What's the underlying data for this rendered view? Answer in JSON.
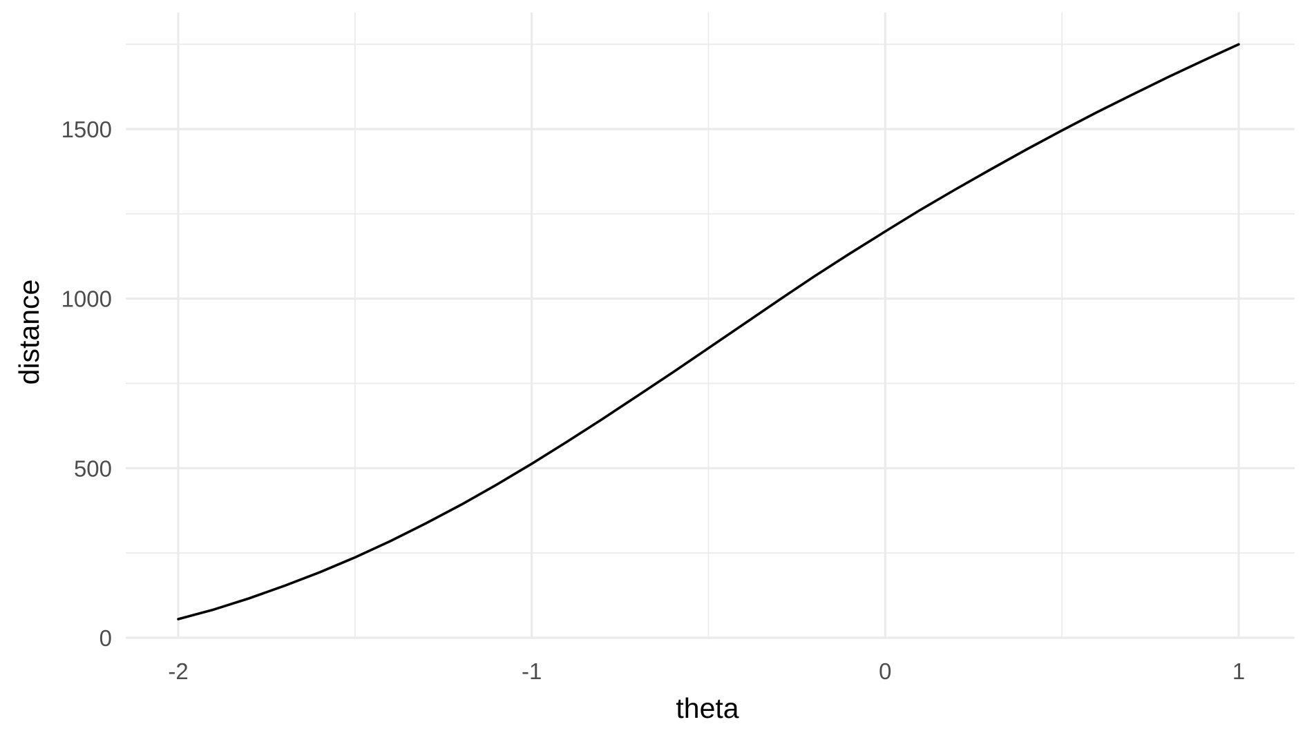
{
  "chart_data": {
    "type": "line",
    "xlabel": "theta",
    "ylabel": "distance",
    "xlim": [
      -2.15,
      1.15
    ],
    "ylim": [
      0,
      1750
    ],
    "x_ticks": [
      -2,
      -1,
      0,
      1
    ],
    "x_tick_labels": [
      "-2",
      "-1",
      "0",
      "1"
    ],
    "x_minor_ticks": [
      -1.5,
      -0.5,
      0.5
    ],
    "y_ticks": [
      0,
      500,
      1000,
      1500
    ],
    "y_tick_labels": [
      "0",
      "500",
      "1000",
      "1500"
    ],
    "y_minor_ticks": [
      250,
      750,
      1250,
      1750
    ],
    "grid": true,
    "series": [
      {
        "color": "#000000",
        "x": [
          -2.0,
          -1.9,
          -1.8,
          -1.7,
          -1.6,
          -1.5,
          -1.4,
          -1.3,
          -1.2,
          -1.1,
          -1.0,
          -0.9,
          -0.8,
          -0.7,
          -0.6,
          -0.5,
          -0.4,
          -0.3,
          -0.2,
          -0.1,
          0.0,
          0.1,
          0.2,
          0.3,
          0.4,
          0.5,
          0.6,
          0.7,
          0.8,
          0.9,
          1.0
        ],
        "y": [
          55,
          83,
          116,
          153,
          193,
          237,
          285,
          337,
          392,
          451,
          513,
          578,
          645,
          714,
          783,
          854,
          925,
          996,
          1066,
          1133,
          1198,
          1262,
          1323,
          1382,
          1440,
          1496,
          1550,
          1602,
          1653,
          1702,
          1750
        ]
      }
    ]
  }
}
